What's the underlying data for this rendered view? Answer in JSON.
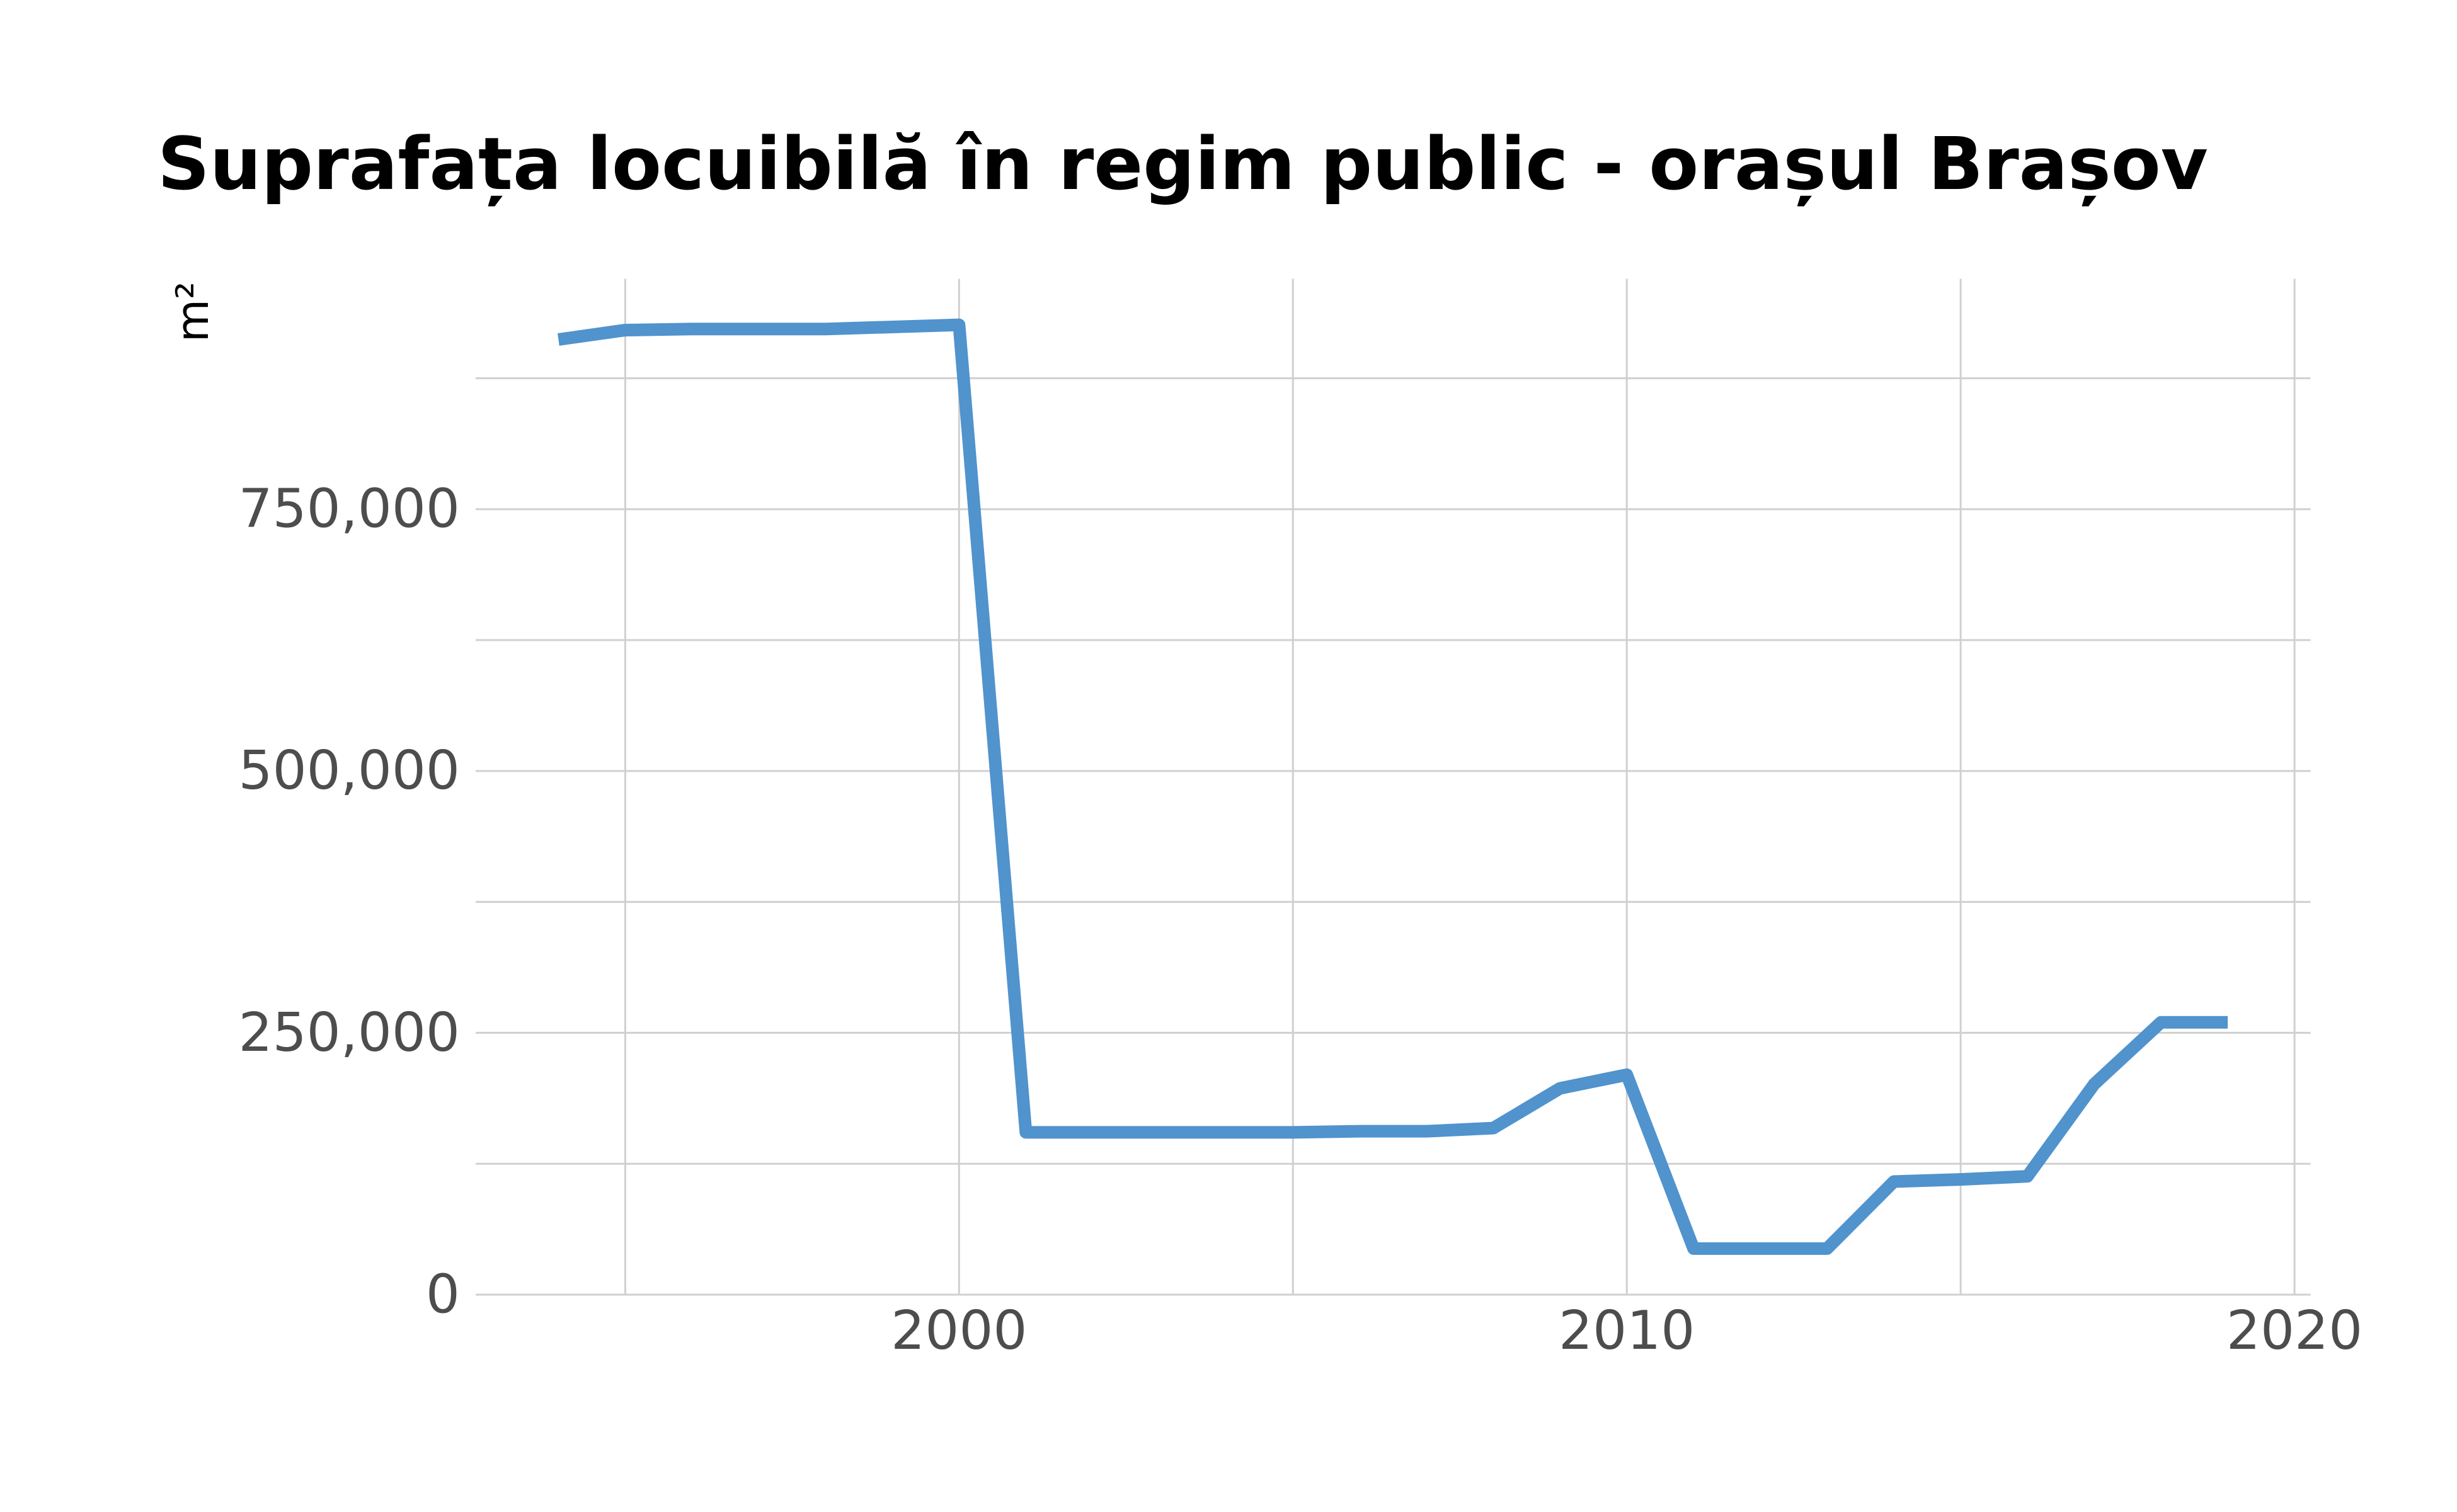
{
  "chart_data": {
    "type": "line",
    "title": "Suprafața locuibilă în regim public - orașul Brașov",
    "ylabel": "m²",
    "x": [
      1994,
      1995,
      1996,
      1997,
      1998,
      1999,
      2000,
      2001,
      2002,
      2003,
      2004,
      2005,
      2006,
      2007,
      2008,
      2009,
      2010,
      2011,
      2012,
      2013,
      2014,
      2015,
      2016,
      2017,
      2018,
      2019
    ],
    "series": [
      {
        "name": "Suprafața locuibilă",
        "color": "#5093cd",
        "values": [
          912000,
          921000,
          922000,
          922000,
          922000,
          924000,
          926000,
          155000,
          155000,
          155000,
          155000,
          155000,
          156000,
          156000,
          159000,
          197000,
          210000,
          44000,
          44000,
          44000,
          108000,
          110000,
          113000,
          201000,
          260000,
          260000
        ]
      }
    ],
    "xlim": [
      1992.76,
      2020.24
    ],
    "xticks": [
      2000,
      2010,
      2020
    ],
    "x_minor_ticks": [
      1995,
      2005,
      2015
    ],
    "ylim": [
      0,
      970000
    ],
    "yticks": [
      0,
      {
        "value": 250000,
        "label": "250,000"
      },
      {
        "value": 500000,
        "label": "500,000"
      },
      {
        "value": 750000,
        "label": "750,000"
      }
    ],
    "y_minor_ticks": [
      125000,
      375000,
      625000,
      875000
    ],
    "grid": true,
    "legend": false
  }
}
